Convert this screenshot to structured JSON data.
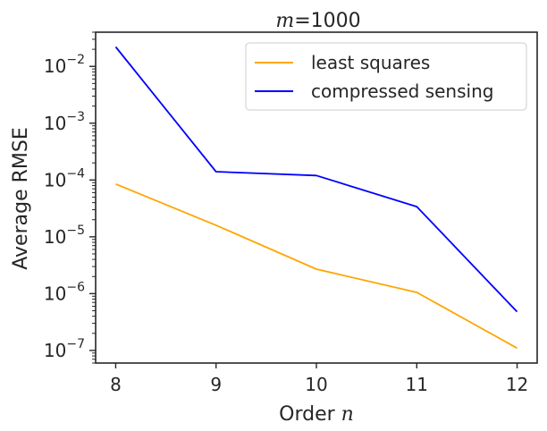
{
  "chart_data": {
    "type": "line",
    "title_prefix": "m",
    "title_suffix": "=1000",
    "xlabel_prefix": "Order ",
    "xlabel_var": "n",
    "ylabel": "Average RMSE",
    "yscale": "log",
    "xlim": [
      7.8,
      12.2
    ],
    "ylim": [
      6e-08,
      0.04
    ],
    "x": [
      8,
      9,
      10,
      11,
      12
    ],
    "x_ticks": [
      "8",
      "9",
      "10",
      "11",
      "12"
    ],
    "y_ticks_exponents": [
      "-7",
      "-6",
      "-5",
      "-4",
      "-3",
      "-2"
    ],
    "y_tick_base": "10",
    "legend_position": "top-right",
    "series": [
      {
        "name": "least squares",
        "color": "#ffa500",
        "values": [
          8.5e-05,
          1.6e-05,
          2.7e-06,
          1.05e-06,
          1.1e-07
        ]
      },
      {
        "name": "compressed sensing",
        "color": "#0000ff",
        "values": [
          0.022,
          0.00014,
          0.00012,
          3.4e-05,
          4.8e-07
        ]
      }
    ]
  }
}
